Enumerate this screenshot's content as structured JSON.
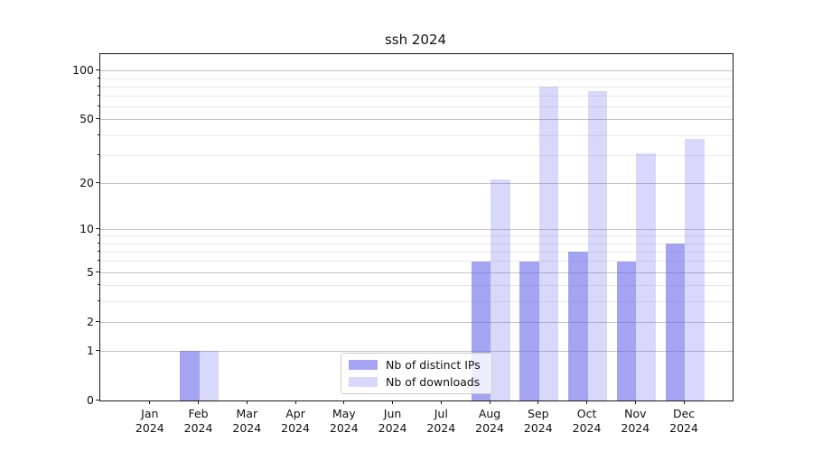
{
  "chart_data": {
    "type": "bar",
    "title": "ssh 2024",
    "months": [
      "Jan",
      "Feb",
      "Mar",
      "Apr",
      "May",
      "Jun",
      "Jul",
      "Aug",
      "Sep",
      "Oct",
      "Nov",
      "Dec"
    ],
    "year": "2024",
    "series": [
      {
        "name": "Nb of distinct IPs",
        "base_color": "#6464eb",
        "alpha": 0.59,
        "effective_color": "#a4a4f2",
        "values": [
          0,
          1,
          0,
          0,
          0,
          0,
          0,
          6,
          6,
          7,
          6,
          8
        ]
      },
      {
        "name": "Nb of downloads",
        "base_color": "#6464eb",
        "alpha": 0.25,
        "effective_color": "#d9d9fa",
        "values": [
          0,
          1,
          0,
          0,
          0,
          0,
          0,
          21,
          80,
          75,
          31,
          38
        ]
      }
    ],
    "yscale": "log1p",
    "yticks_major": [
      0,
      1,
      2,
      5,
      10,
      20,
      50,
      100
    ],
    "yticks_minor": [
      3,
      4,
      6,
      7,
      8,
      9,
      30,
      40,
      60,
      70,
      80,
      90
    ],
    "ylim": [
      0,
      127
    ],
    "grid": "horizontal, majors and minors",
    "legend_position": "lower center inside axes"
  },
  "colors": {
    "background": "#ffffff",
    "axis": "#1a1a1a",
    "grid_major": "#c2c2c2",
    "grid_minor": "#e9e9e9",
    "text": "#111111",
    "legend_border": "#cccccc"
  }
}
